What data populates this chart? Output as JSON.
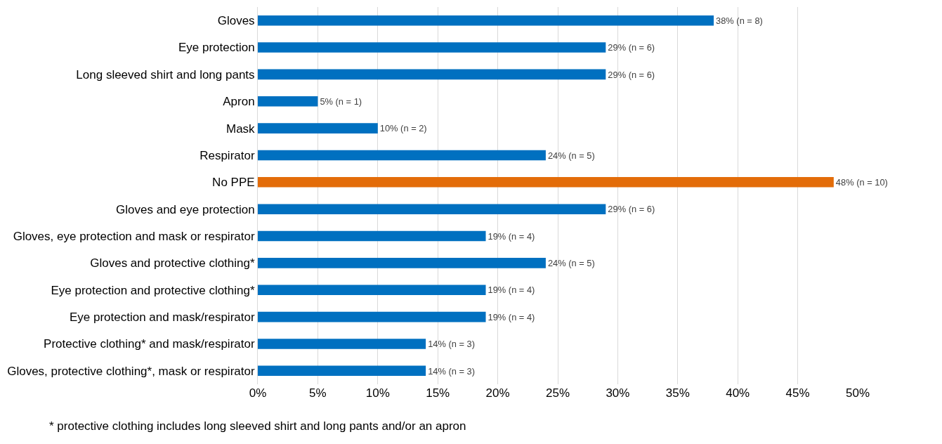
{
  "chart_data": {
    "type": "bar",
    "orientation": "horizontal",
    "categories": [
      "Gloves",
      "Eye protection",
      "Long sleeved shirt and long pants",
      "Apron",
      "Mask",
      "Respirator",
      "No PPE",
      "Gloves and eye protection",
      "Gloves, eye protection and mask or respirator",
      "Gloves and protective clothing*",
      "Eye protection and protective clothing*",
      "Eye protection and mask/respirator",
      "Protective clothing* and mask/respirator",
      "Gloves, protective clothing*, mask or respirator"
    ],
    "values": [
      38,
      29,
      29,
      5,
      10,
      24,
      48,
      29,
      19,
      24,
      19,
      19,
      14,
      14
    ],
    "colors": [
      "#0070c0",
      "#0070c0",
      "#0070c0",
      "#0070c0",
      "#0070c0",
      "#0070c0",
      "#e36c09",
      "#0070c0",
      "#0070c0",
      "#0070c0",
      "#0070c0",
      "#0070c0",
      "#0070c0",
      "#0070c0"
    ],
    "value_labels": [
      "38% (n = 8)",
      "29% (n = 6)",
      "29% (n = 6)",
      "5% (n = 1)",
      "10% (n = 2)",
      "24% (n = 5)",
      "48% (n = 10)",
      "29% (n = 6)",
      "19% (n = 4)",
      "24% (n = 5)",
      "19% (n = 4)",
      "19% (n = 4)",
      "14% (n = 3)",
      "14% (n = 3)"
    ],
    "xlim": [
      0,
      50
    ],
    "xticks": [
      {
        "value": 0,
        "label": "0%"
      },
      {
        "value": 5,
        "label": "5%"
      },
      {
        "value": 10,
        "label": "10%"
      },
      {
        "value": 15,
        "label": "15%"
      },
      {
        "value": 20,
        "label": "20%"
      },
      {
        "value": 25,
        "label": "25%"
      },
      {
        "value": 30,
        "label": "30%"
      },
      {
        "value": 35,
        "label": "35%"
      },
      {
        "value": 40,
        "label": "40%"
      },
      {
        "value": 45,
        "label": "45%"
      },
      {
        "value": 50,
        "label": "50%"
      }
    ],
    "grid": "x",
    "annotations": [
      "* protective clothing includes long sleeved shirt and long pants and/or an apron"
    ]
  }
}
